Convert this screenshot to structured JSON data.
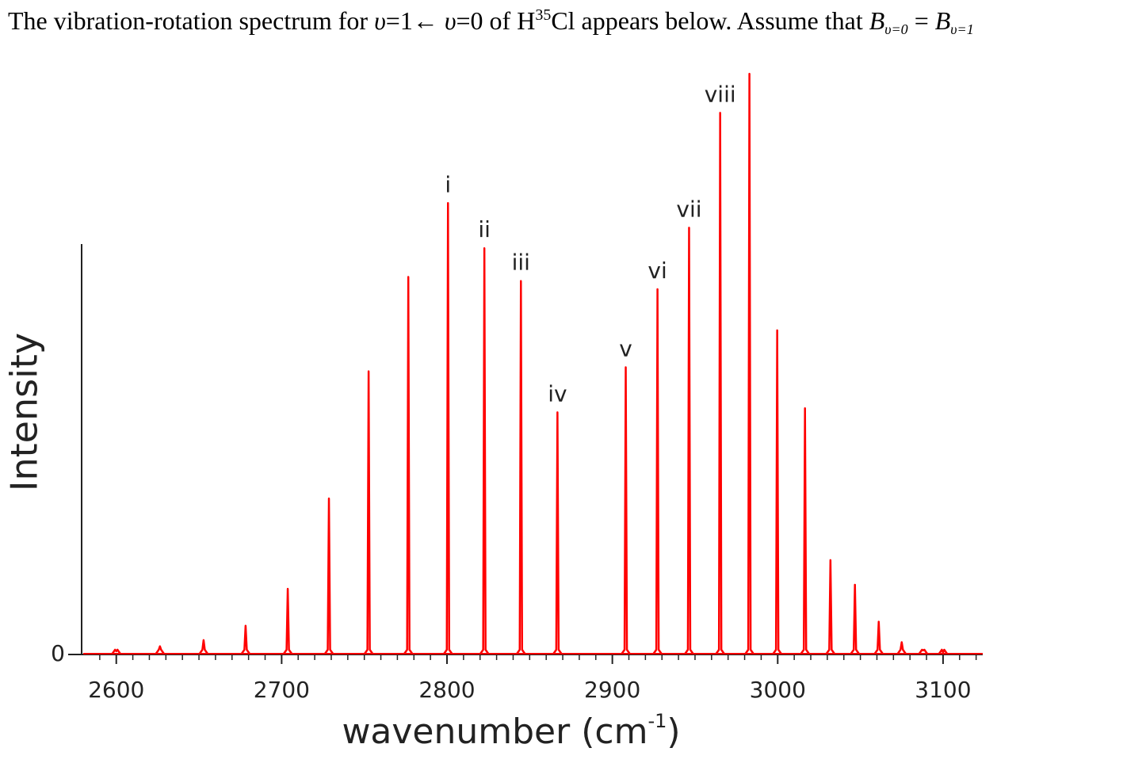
{
  "chart_data": {
    "type": "spectrum",
    "title_parts": [
      "The vibration-rotation spectrum for ",
      "υ",
      "=1← ",
      "υ",
      "=0 of H",
      "35",
      "Cl appears below. Assume that ",
      "B",
      "υ=0",
      " = ",
      "B",
      "υ=1"
    ],
    "xlabel_parts": [
      "wavenumber (cm",
      "-1",
      ")"
    ],
    "ylabel": "Intensity",
    "color": "#ff0000",
    "x": [
      2600,
      2626.4,
      2652.8,
      2678.2,
      2703.7,
      2728.6,
      2752.6,
      2776.6,
      2800.6,
      2822.6,
      2844.7,
      2866.8,
      2908.1,
      2927.3,
      2946.4,
      2965.2,
      2982.9,
      2999.7,
      3016.5,
      3031.9,
      3046.7,
      3061.1,
      3075.0,
      3088,
      3100
    ],
    "values": [
      0.8,
      2,
      3.5,
      7,
      16,
      38,
      69,
      92,
      110,
      99,
      91,
      59,
      70,
      89,
      104,
      132,
      141.5,
      79,
      60,
      23,
      17,
      8,
      3,
      1,
      0.5
    ],
    "labels": [
      null,
      null,
      null,
      null,
      null,
      null,
      null,
      null,
      "i",
      "ii",
      "iii",
      "iv",
      "v",
      "vi",
      "vii",
      "viii",
      null,
      null,
      null,
      null,
      null,
      null,
      null,
      null,
      null
    ],
    "xlim": [
      2580,
      3124
    ],
    "xticks": [
      2600,
      2700,
      2800,
      2900,
      3000,
      3100
    ],
    "xminorticks": [
      2590,
      2610,
      2620,
      2630,
      2640,
      2650,
      2660,
      2670,
      2680,
      2690,
      2710,
      2720,
      2730,
      2740,
      2750,
      2760,
      2770,
      2780,
      2790,
      2810,
      2820,
      2830,
      2840,
      2850,
      2860,
      2870,
      2880,
      2890,
      2910,
      2920,
      2930,
      2940,
      2950,
      2960,
      2970,
      2980,
      2990,
      3010,
      3020,
      3030,
      3040,
      3050,
      3060,
      3070,
      3080,
      3090,
      3110,
      3120
    ],
    "ylim": [
      0,
      145
    ],
    "yticks": [
      0
    ]
  }
}
